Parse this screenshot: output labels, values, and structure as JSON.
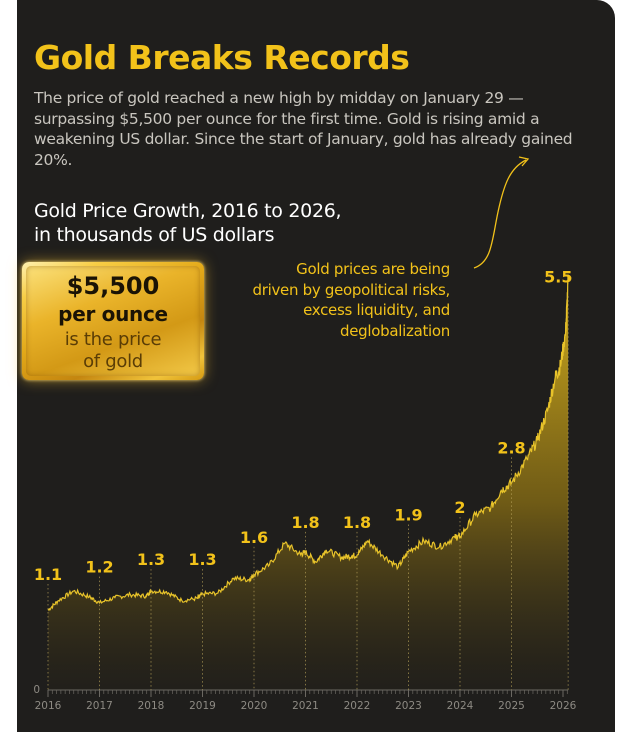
{
  "title": "Gold Breaks Records",
  "description": "The price of gold reached a new high by midday on January 29 — surpassing $5,500 per ounce for the first time. Gold is rising amid a weakening US dollar. Since the start of January, gold has already gained 20%.",
  "subtitle_line1": "Gold Price Growth, 2016 to 2026,",
  "subtitle_line2": "in thousands of US dollars",
  "plaque": {
    "price": "$5,500",
    "unit": "per ounce",
    "line1": "is the price",
    "line2": "of gold"
  },
  "annotation": {
    "line1": "Gold prices are being",
    "line2": "driven by geopolitical risks,",
    "line3": "excess liquidity, and",
    "line4": "deglobalization"
  },
  "colors": {
    "background": "#1f1e1c",
    "accent": "#f2c21a",
    "text": "#c9c6bf"
  },
  "chart_data": {
    "type": "area",
    "title": "Gold Price Growth, 2016 to 2026, in thousands of US dollars",
    "x_ticks": [
      "2016",
      "2017",
      "2018",
      "2019",
      "2020",
      "2021",
      "2022",
      "2023",
      "2024",
      "2025",
      "2026"
    ],
    "y_zero_label": "0",
    "ylim": [
      0,
      5.5
    ],
    "grid": false,
    "series": [
      {
        "values": [
          {
            "x": 2016.0,
            "y": 1.07
          },
          {
            "x": 2016.2,
            "y": 1.2
          },
          {
            "x": 2016.5,
            "y": 1.33
          },
          {
            "x": 2016.8,
            "y": 1.25
          },
          {
            "x": 2017.0,
            "y": 1.17
          },
          {
            "x": 2017.3,
            "y": 1.24
          },
          {
            "x": 2017.6,
            "y": 1.28
          },
          {
            "x": 2017.9,
            "y": 1.26
          },
          {
            "x": 2018.0,
            "y": 1.33
          },
          {
            "x": 2018.3,
            "y": 1.32
          },
          {
            "x": 2018.6,
            "y": 1.2
          },
          {
            "x": 2018.9,
            "y": 1.23
          },
          {
            "x": 2019.0,
            "y": 1.29
          },
          {
            "x": 2019.3,
            "y": 1.3
          },
          {
            "x": 2019.6,
            "y": 1.5
          },
          {
            "x": 2019.9,
            "y": 1.48
          },
          {
            "x": 2020.0,
            "y": 1.55
          },
          {
            "x": 2020.3,
            "y": 1.68
          },
          {
            "x": 2020.6,
            "y": 1.97
          },
          {
            "x": 2020.9,
            "y": 1.82
          },
          {
            "x": 2021.0,
            "y": 1.85
          },
          {
            "x": 2021.2,
            "y": 1.72
          },
          {
            "x": 2021.4,
            "y": 1.88
          },
          {
            "x": 2021.7,
            "y": 1.78
          },
          {
            "x": 2021.9,
            "y": 1.8
          },
          {
            "x": 2022.0,
            "y": 1.81
          },
          {
            "x": 2022.2,
            "y": 2.0
          },
          {
            "x": 2022.5,
            "y": 1.81
          },
          {
            "x": 2022.8,
            "y": 1.65
          },
          {
            "x": 2023.0,
            "y": 1.86
          },
          {
            "x": 2023.3,
            "y": 2.0
          },
          {
            "x": 2023.6,
            "y": 1.92
          },
          {
            "x": 2023.9,
            "y": 2.05
          },
          {
            "x": 2024.0,
            "y": 2.06
          },
          {
            "x": 2024.3,
            "y": 2.35
          },
          {
            "x": 2024.6,
            "y": 2.45
          },
          {
            "x": 2024.8,
            "y": 2.68
          },
          {
            "x": 2025.0,
            "y": 2.78
          },
          {
            "x": 2025.3,
            "y": 3.1
          },
          {
            "x": 2025.5,
            "y": 3.35
          },
          {
            "x": 2025.7,
            "y": 3.75
          },
          {
            "x": 2025.85,
            "y": 4.2
          },
          {
            "x": 2025.95,
            "y": 4.35
          },
          {
            "x": 2026.05,
            "y": 4.8
          },
          {
            "x": 2026.1,
            "y": 5.5
          }
        ]
      }
    ],
    "data_labels": [
      {
        "x": 2016,
        "label": "1.1",
        "value": 1.1
      },
      {
        "x": 2017,
        "label": "1.2",
        "value": 1.2
      },
      {
        "x": 2018,
        "label": "1.3",
        "value": 1.3
      },
      {
        "x": 2019,
        "label": "1.3",
        "value": 1.3
      },
      {
        "x": 2020,
        "label": "1.6",
        "value": 1.6
      },
      {
        "x": 2021,
        "label": "1.8",
        "value": 1.8
      },
      {
        "x": 2022,
        "label": "1.8",
        "value": 1.8
      },
      {
        "x": 2023,
        "label": "1.9",
        "value": 1.9
      },
      {
        "x": 2024,
        "label": "2",
        "value": 2.0
      },
      {
        "x": 2025,
        "label": "2.8",
        "value": 2.8
      },
      {
        "x": 2026.1,
        "label": "5.5",
        "value": 5.5
      }
    ]
  }
}
